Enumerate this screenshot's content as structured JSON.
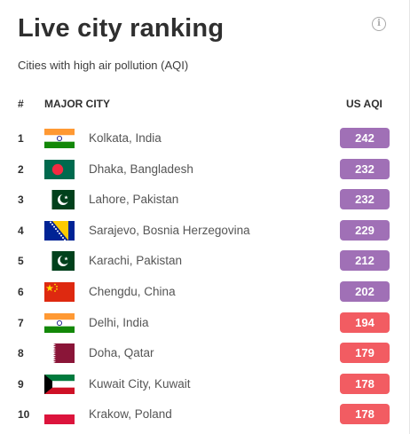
{
  "header": {
    "title": "Live city ranking",
    "subtitle": "Cities with high air pollution (AQI)",
    "info_icon": "info-icon"
  },
  "table": {
    "columns": {
      "rank": "#",
      "city": "MAJOR CITY",
      "aqi": "US AQI"
    },
    "rows": [
      {
        "rank": "1",
        "flag": "india",
        "city": "Kolkata, India",
        "aqi": "242",
        "color": "#a070b6"
      },
      {
        "rank": "2",
        "flag": "bangladesh",
        "city": "Dhaka, Bangladesh",
        "aqi": "232",
        "color": "#a070b6"
      },
      {
        "rank": "3",
        "flag": "pakistan",
        "city": "Lahore, Pakistan",
        "aqi": "232",
        "color": "#a070b6"
      },
      {
        "rank": "4",
        "flag": "bosnia",
        "city": "Sarajevo, Bosnia Herzegovina",
        "aqi": "229",
        "color": "#a070b6"
      },
      {
        "rank": "5",
        "flag": "pakistan",
        "city": "Karachi, Pakistan",
        "aqi": "212",
        "color": "#a070b6"
      },
      {
        "rank": "6",
        "flag": "china",
        "city": "Chengdu, China",
        "aqi": "202",
        "color": "#a070b6"
      },
      {
        "rank": "7",
        "flag": "india",
        "city": "Delhi, India",
        "aqi": "194",
        "color": "#f25c62"
      },
      {
        "rank": "8",
        "flag": "qatar",
        "city": "Doha, Qatar",
        "aqi": "179",
        "color": "#f25c62"
      },
      {
        "rank": "9",
        "flag": "kuwait",
        "city": "Kuwait City, Kuwait",
        "aqi": "178",
        "color": "#f25c62"
      },
      {
        "rank": "10",
        "flag": "poland",
        "city": "Krakow, Poland",
        "aqi": "178",
        "color": "#f25c62"
      }
    ]
  }
}
